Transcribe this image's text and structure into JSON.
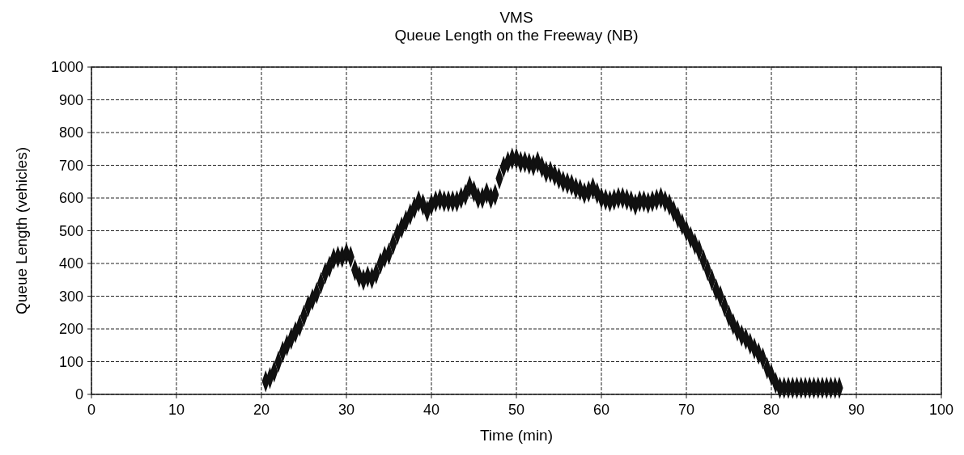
{
  "chart_data": {
    "type": "scatter",
    "title": "VMS",
    "subtitle": "Queue Length on the Freeway (NB)",
    "xlabel": "Time (min)",
    "ylabel": "Queue Length (vehicles)",
    "xlim": [
      0,
      100
    ],
    "xticks": [
      0,
      10,
      20,
      30,
      40,
      50,
      60,
      70,
      80,
      90,
      100
    ],
    "ylim": [
      0,
      1000
    ],
    "yticks": [
      0,
      100,
      200,
      300,
      400,
      500,
      600,
      700,
      800,
      900,
      1000
    ],
    "grid": true,
    "marker": "diamond",
    "series": [
      {
        "color": "#111111",
        "x": [
          20.5,
          21,
          21.5,
          22,
          22.5,
          23,
          23.5,
          24,
          24.5,
          25,
          25.5,
          26,
          26.5,
          27,
          27.5,
          28,
          28.5,
          29,
          29.5,
          30,
          30.5,
          31,
          31.5,
          32,
          32.5,
          33,
          33.5,
          34,
          34.5,
          35,
          35.5,
          36,
          36.5,
          37,
          37.5,
          38,
          38.5,
          39,
          39.5,
          40,
          40.5,
          41,
          41.5,
          42,
          42.5,
          43,
          43.5,
          44,
          44.5,
          45,
          45.5,
          46,
          46.5,
          47,
          47.5,
          48,
          48.5,
          49,
          49.5,
          50,
          50.5,
          51,
          51.5,
          52,
          52.5,
          53,
          53.5,
          54,
          54.5,
          55,
          55.5,
          56,
          56.5,
          57,
          57.5,
          58,
          58.5,
          59,
          59.5,
          60,
          60.5,
          61,
          61.5,
          62,
          62.5,
          63,
          63.5,
          64,
          64.5,
          65,
          65.5,
          66,
          66.5,
          67,
          67.5,
          68,
          68.5,
          69,
          69.5,
          70,
          70.5,
          71,
          71.5,
          72,
          72.5,
          73,
          73.5,
          74,
          74.5,
          75,
          75.5,
          76,
          76.5,
          77,
          77.5,
          78,
          78.5,
          79,
          79.5,
          80,
          80.5,
          81,
          81.5,
          82,
          82.5,
          83,
          83.5,
          84,
          84.5,
          85,
          85.5,
          86,
          86.5,
          87,
          87.5,
          88
        ],
        "values": [
          40,
          50,
          70,
          100,
          130,
          150,
          170,
          190,
          210,
          240,
          270,
          290,
          310,
          340,
          370,
          390,
          415,
          420,
          420,
          430,
          420,
          380,
          360,
          350,
          360,
          355,
          370,
          400,
          420,
          430,
          460,
          490,
          510,
          530,
          550,
          570,
          590,
          580,
          560,
          580,
          590,
          595,
          590,
          590,
          590,
          590,
          600,
          610,
          635,
          620,
          600,
          600,
          615,
          600,
          610,
          660,
          695,
          710,
          720,
          720,
          710,
          710,
          705,
          700,
          710,
          695,
          680,
          680,
          670,
          660,
          650,
          645,
          640,
          630,
          625,
          615,
          620,
          630,
          615,
          600,
          595,
          590,
          595,
          600,
          600,
          595,
          590,
          580,
          590,
          590,
          585,
          590,
          595,
          600,
          590,
          580,
          560,
          540,
          520,
          500,
          480,
          460,
          440,
          410,
          380,
          350,
          320,
          300,
          270,
          240,
          215,
          195,
          180,
          170,
          155,
          140,
          125,
          110,
          80,
          60,
          35,
          20,
          20,
          20,
          20,
          20,
          20,
          20,
          20,
          20,
          20,
          20,
          20,
          20,
          20,
          20
        ]
      }
    ]
  }
}
